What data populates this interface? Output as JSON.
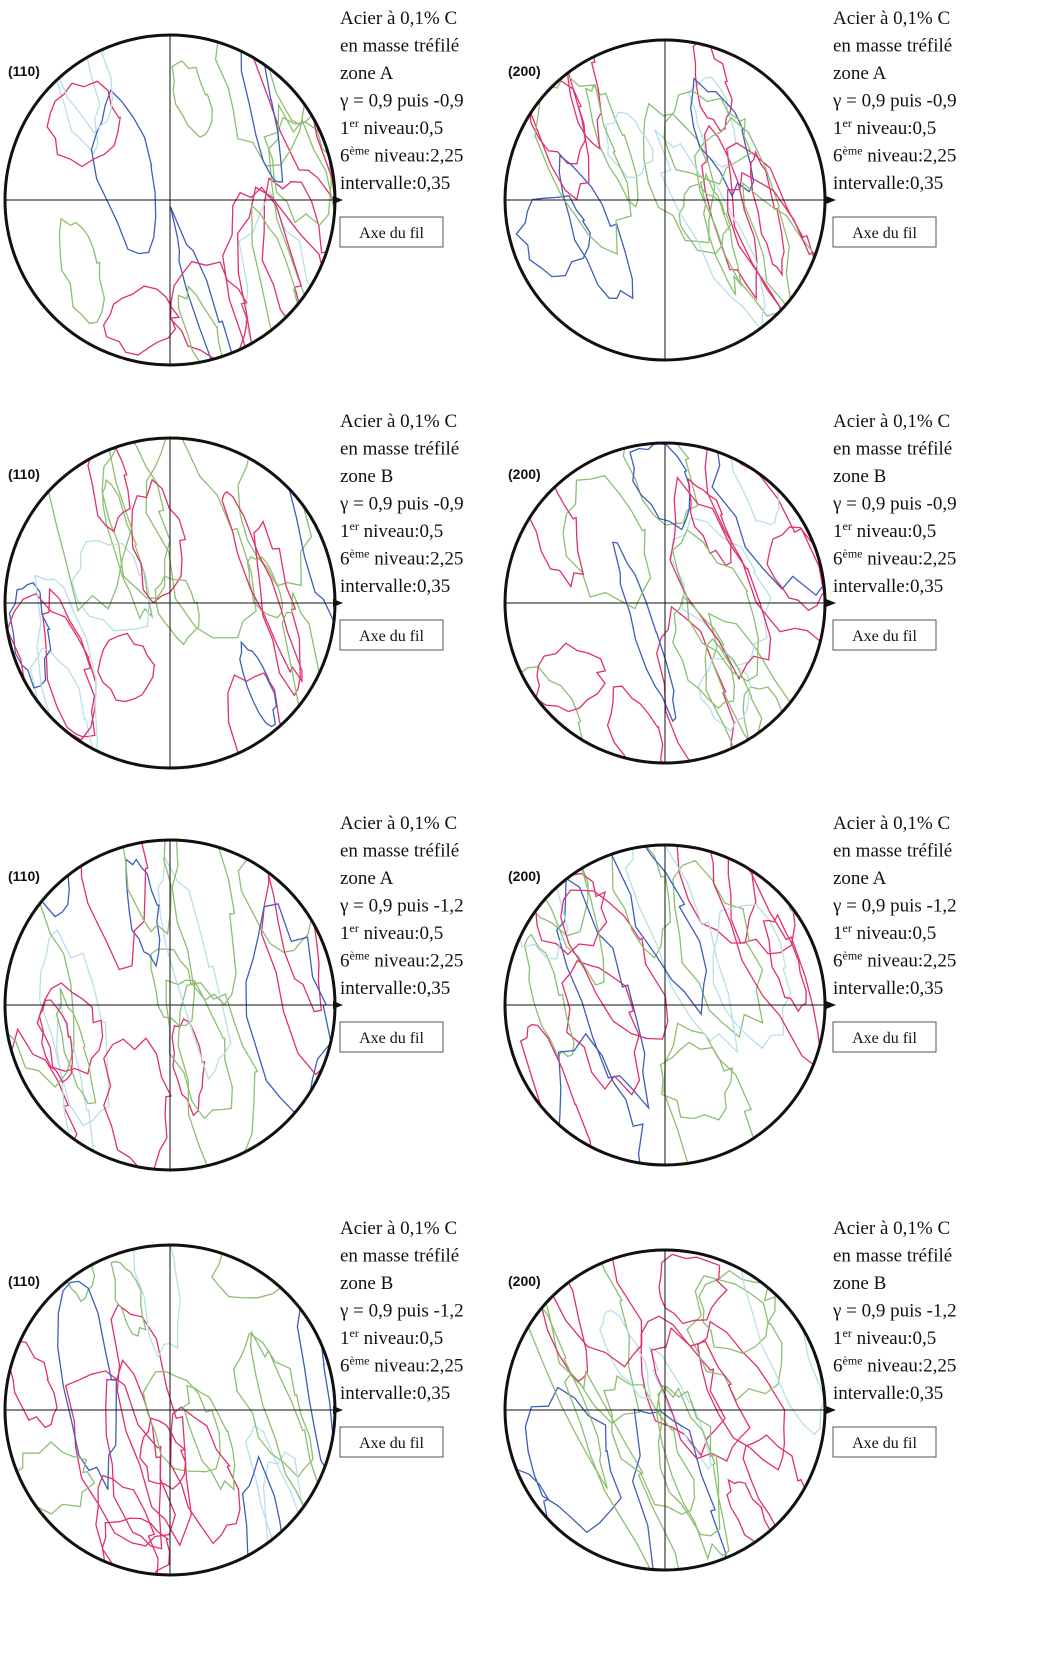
{
  "panels": [
    {
      "plane": "(110)",
      "lines": [
        "Acier à 0,1% C",
        "en masse tréfilé",
        "zone A",
        "γ = 0,9 puis -0,9"
      ],
      "first_level": [
        "1",
        "er",
        " niveau:0,5"
      ],
      "sixth_level": [
        "6",
        "ème",
        " niveau:2,25"
      ],
      "interval": "intervalle:0,35",
      "axis_label": "Axe du fil"
    },
    {
      "plane": "(200)",
      "lines": [
        "Acier à 0,1% C",
        "en masse tréfilé",
        "zone A",
        "γ = 0,9 puis -0,9"
      ],
      "first_level": [
        "1",
        "er",
        " niveau:0,5"
      ],
      "sixth_level": [
        "6",
        "ème",
        " niveau:2,25"
      ],
      "interval": "intervalle:0,35",
      "axis_label": "Axe du fil"
    },
    {
      "plane": "(110)",
      "lines": [
        "Acier à 0,1% C",
        "en masse tréfilé",
        "zone B",
        "γ = 0,9 puis -0,9"
      ],
      "first_level": [
        "1",
        "er",
        " niveau:0,5"
      ],
      "sixth_level": [
        "6",
        "ème",
        " niveau:2,25"
      ],
      "interval": "intervalle:0,35",
      "axis_label": "Axe du fil"
    },
    {
      "plane": "(200)",
      "lines": [
        "Acier à 0,1% C",
        "en masse tréfilé",
        "zone B",
        "γ = 0,9 puis -0,9"
      ],
      "first_level": [
        "1",
        "er",
        " niveau:0,5"
      ],
      "sixth_level": [
        "6",
        "ème",
        " niveau:2,25"
      ],
      "interval": "intervalle:0,35",
      "axis_label": "Axe du fil"
    },
    {
      "plane": "(110)",
      "lines": [
        "Acier à 0,1% C",
        "en masse tréfilé",
        "zone A",
        "γ = 0,9 puis -1,2"
      ],
      "first_level": [
        "1",
        "er",
        " niveau:0,5"
      ],
      "sixth_level": [
        "6",
        "ème",
        " niveau:2,25"
      ],
      "interval": "intervalle:0,35",
      "axis_label": "Axe du fil"
    },
    {
      "plane": "(200)",
      "lines": [
        "Acier à 0,1% C",
        "en masse tréfilé",
        "zone A",
        "γ = 0,9 puis -1,2"
      ],
      "first_level": [
        "1",
        "er",
        " niveau:0,5"
      ],
      "sixth_level": [
        "6",
        "ème",
        " niveau:2,25"
      ],
      "interval": "intervalle:0,35",
      "axis_label": "Axe du fil"
    },
    {
      "plane": "(110)",
      "lines": [
        "Acier à 0,1% C",
        "en masse tréfilé",
        "zone B",
        "γ = 0,9 puis -1,2"
      ],
      "first_level": [
        "1",
        "er",
        " niveau:0,5"
      ],
      "sixth_level": [
        "6",
        "ème",
        " niveau:2,25"
      ],
      "interval": "intervalle:0,35",
      "axis_label": "Axe du fil"
    },
    {
      "plane": "(200)",
      "lines": [
        "Acier à 0,1% C",
        "en masse tréfilé",
        "zone B",
        "γ = 0,9 puis -1,2"
      ],
      "first_level": [
        "1",
        "er",
        " niveau:0,5"
      ],
      "sixth_level": [
        "6",
        "ème",
        " niveau:2,25"
      ],
      "interval": "intervalle:0,35",
      "axis_label": "Axe du fil"
    }
  ]
}
